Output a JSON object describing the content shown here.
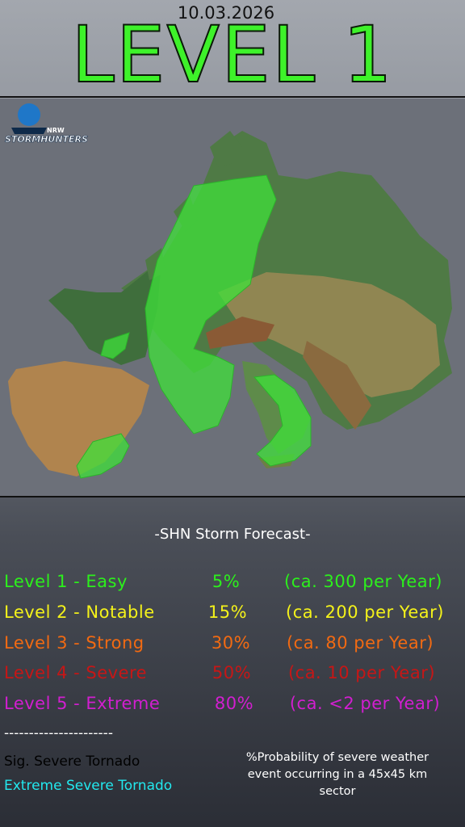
{
  "header": {
    "date": "10.03.2026",
    "level": "LEVEL 1"
  },
  "logo": {
    "name": "STORMHUNTERS",
    "region": "NRW"
  },
  "legend": {
    "title": "-SHN Storm Forecast-",
    "rows": [
      {
        "name": "Level 1 - Easy",
        "probability": "5%",
        "frequency": "(ca. 300 per Year)"
      },
      {
        "name": "Level 2 - Notable",
        "probability": "15%",
        "frequency": "(ca. 200 per Year)"
      },
      {
        "name": "Level 3 - Strong",
        "probability": "30%",
        "frequency": "(ca. 80 per Year)"
      },
      {
        "name": "Level 4 - Severe",
        "probability": "50%",
        "frequency": "(ca. 10 per Year)"
      },
      {
        "name": "Level 5 - Extreme",
        "probability": "80%",
        "frequency": "(ca.  <2 per Year)"
      }
    ]
  },
  "notes": {
    "separator": "----------------------",
    "sig_tornado": "Sig. Severe Tornado",
    "extreme_tornado": "Extreme Severe Tornado",
    "probability": "%Probability of severe weather event occurring in a 45x45 km sector"
  }
}
